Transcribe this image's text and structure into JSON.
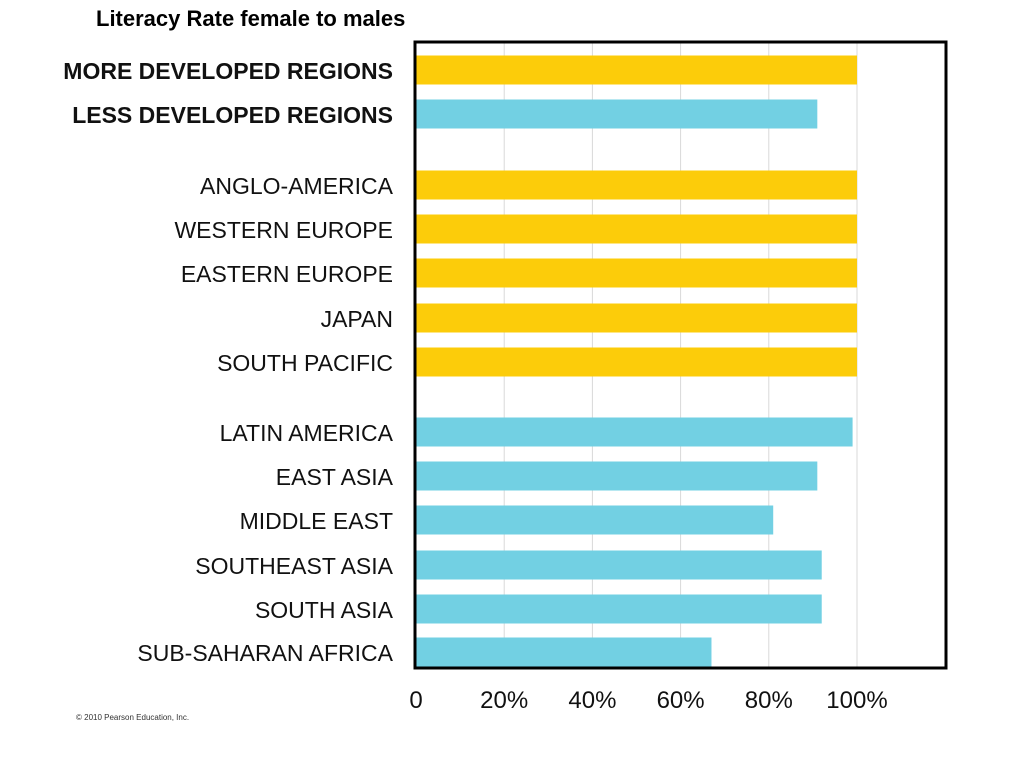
{
  "page": {
    "title": "Literacy Rate female to males",
    "copyright": "© 2010 Pearson Education, Inc."
  },
  "colors": {
    "more_developed": "#FCCC0A",
    "less_developed": "#72D0E3",
    "gridline": "#d9d9d9",
    "frame": "#000000"
  },
  "chart_data": {
    "type": "bar",
    "orientation": "horizontal",
    "title": "",
    "xlabel": "",
    "ylabel": "",
    "xlim": [
      0,
      120
    ],
    "x_ticks": [
      {
        "value": 0,
        "label": "0"
      },
      {
        "value": 20,
        "label": "20%"
      },
      {
        "value": 40,
        "label": "40%"
      },
      {
        "value": 60,
        "label": "60%"
      },
      {
        "value": 80,
        "label": "80%"
      },
      {
        "value": 100,
        "label": "100%"
      }
    ],
    "grid": true,
    "legend": "none",
    "categories": [
      {
        "label": "MORE DEVELOPED REGIONS",
        "value": 100,
        "group": "more_developed",
        "bold": true
      },
      {
        "label": "LESS DEVELOPED REGIONS",
        "value": 91,
        "group": "less_developed",
        "bold": true
      },
      {
        "label": "ANGLO-AMERICA",
        "value": 100,
        "group": "more_developed",
        "bold": false
      },
      {
        "label": "WESTERN EUROPE",
        "value": 100,
        "group": "more_developed",
        "bold": false
      },
      {
        "label": "EASTERN EUROPE",
        "value": 100,
        "group": "more_developed",
        "bold": false
      },
      {
        "label": "JAPAN",
        "value": 100,
        "group": "more_developed",
        "bold": false
      },
      {
        "label": "SOUTH PACIFIC",
        "value": 100,
        "group": "more_developed",
        "bold": false
      },
      {
        "label": "LATIN AMERICA",
        "value": 99,
        "group": "less_developed",
        "bold": false
      },
      {
        "label": "EAST ASIA",
        "value": 91,
        "group": "less_developed",
        "bold": false
      },
      {
        "label": "MIDDLE EAST",
        "value": 81,
        "group": "less_developed",
        "bold": false
      },
      {
        "label": "SOUTHEAST ASIA",
        "value": 92,
        "group": "less_developed",
        "bold": false
      },
      {
        "label": "SOUTH ASIA",
        "value": 92,
        "group": "less_developed",
        "bold": false
      },
      {
        "label": "SUB-SAHARAN AFRICA",
        "value": 67,
        "group": "less_developed",
        "bold": false
      }
    ]
  }
}
